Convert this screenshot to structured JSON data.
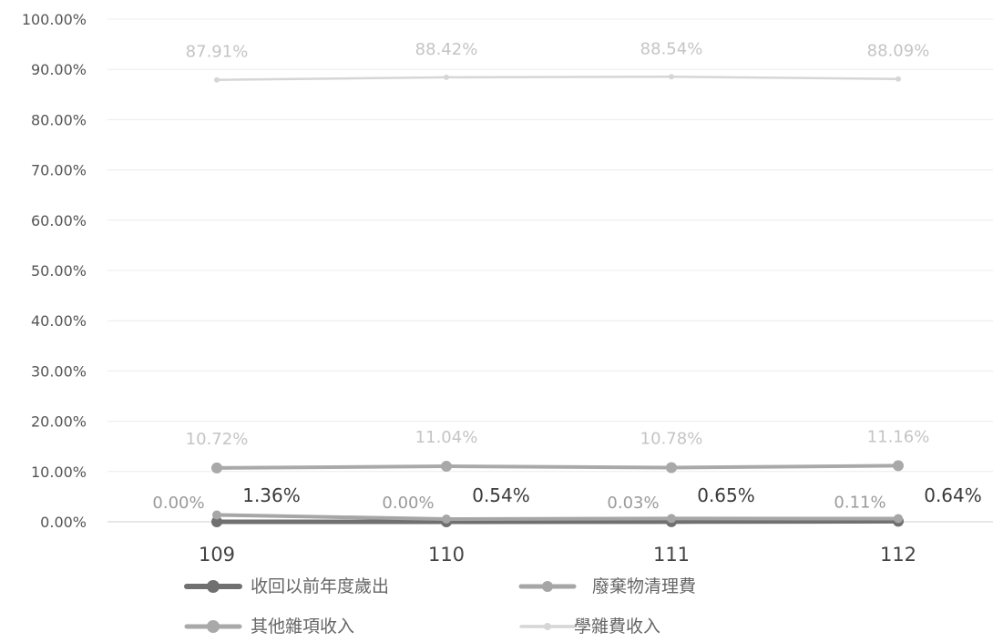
{
  "chart_data": {
    "type": "line",
    "categories": [
      "109",
      "110",
      "111",
      "112"
    ],
    "y_ticks": [
      "0.00%",
      "10.00%",
      "20.00%",
      "30.00%",
      "40.00%",
      "50.00%",
      "60.00%",
      "70.00%",
      "80.00%",
      "90.00%",
      "100.00%"
    ],
    "ylim": [
      0,
      100
    ],
    "grid": true,
    "legend_position": "bottom",
    "series": [
      {
        "name": "收回以前年度歲出",
        "values": [
          0.0,
          0.0,
          0.03,
          0.11
        ],
        "labels": [
          "0.00%",
          "0.00%",
          "0.03%",
          "0.11%"
        ],
        "color": "#707070"
      },
      {
        "name": "廢棄物清理費",
        "values": [
          1.36,
          0.54,
          0.65,
          0.64
        ],
        "labels": [
          "1.36%",
          "0.54%",
          "0.65%",
          "0.64%"
        ],
        "color": "#a6a6a6"
      },
      {
        "name": "其他雜項收入",
        "values": [
          10.72,
          11.04,
          10.78,
          11.16
        ],
        "labels": [
          "10.72%",
          "11.04%",
          "10.78%",
          "11.16%"
        ],
        "color": "#a9a9a9"
      },
      {
        "name": "學雜費收入",
        "values": [
          87.91,
          88.42,
          88.54,
          88.09
        ],
        "labels": [
          "87.91%",
          "88.42%",
          "88.54%",
          "88.09%"
        ],
        "color": "#d6d6d6"
      }
    ]
  }
}
